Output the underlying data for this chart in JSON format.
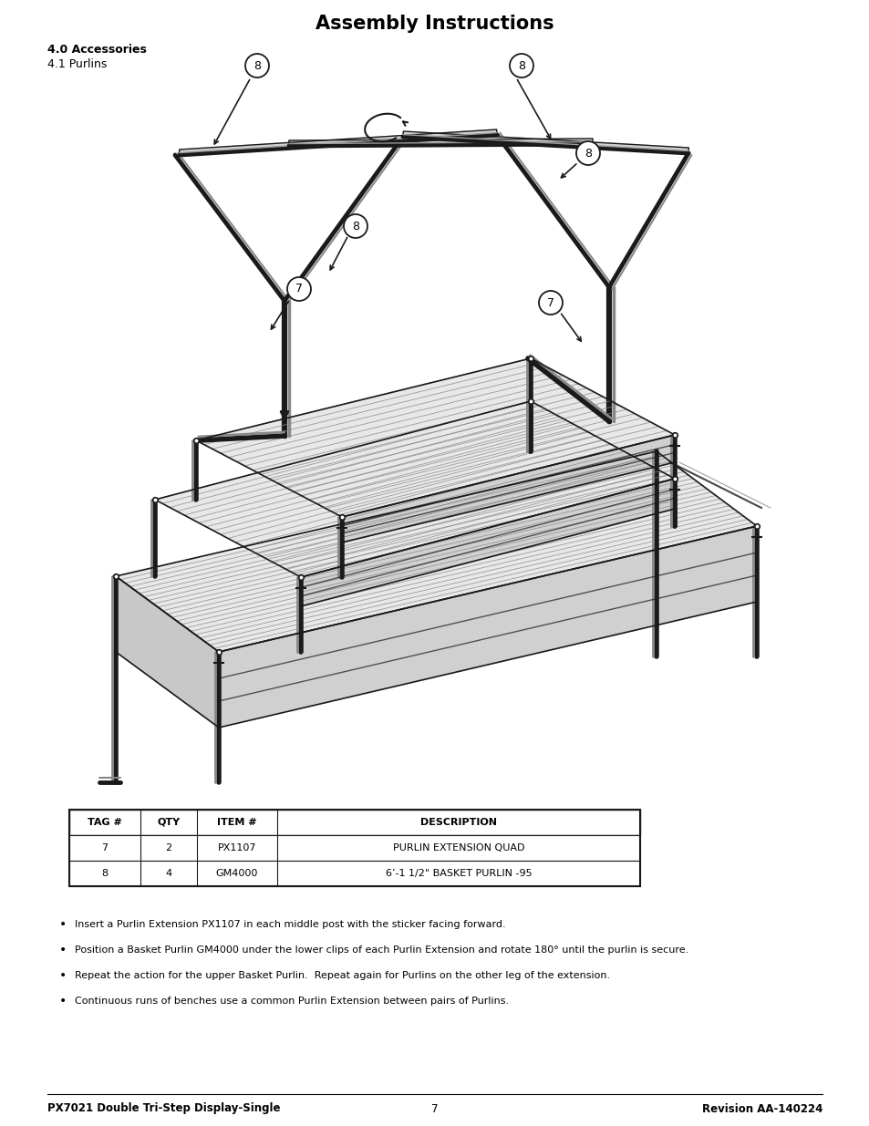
{
  "title": "Assembly Instructions",
  "section_header": "4.0 Accessories",
  "section_sub": "4.1 Purlins",
  "table_headers": [
    "TAG #",
    "QTY",
    "ITEM #",
    "DESCRIPTION"
  ],
  "table_rows": [
    [
      "7",
      "2",
      "PX1107",
      "PURLIN EXTENSION QUAD"
    ],
    [
      "8",
      "4",
      "GM4000",
      "6’-1 1/2\" BASKET PURLIN -95"
    ]
  ],
  "bullet_points": [
    "Insert a Purlin Extension PX1107 in each middle post with the sticker facing forward.",
    "Position a Basket Purlin GM4000 under the lower clips of each Purlin Extension and rotate 180° until the purlin is secure.",
    "Repeat the action for the upper Basket Purlin.  Repeat again for Purlins on the other leg of the extension.",
    "Continuous runs of benches use a common Purlin Extension between pairs of Purlins."
  ],
  "footer_left": "PX7021 Double Tri-Step Display-Single",
  "footer_center": "7",
  "footer_right": "Revision AA-140224",
  "bg": "#ffffff"
}
